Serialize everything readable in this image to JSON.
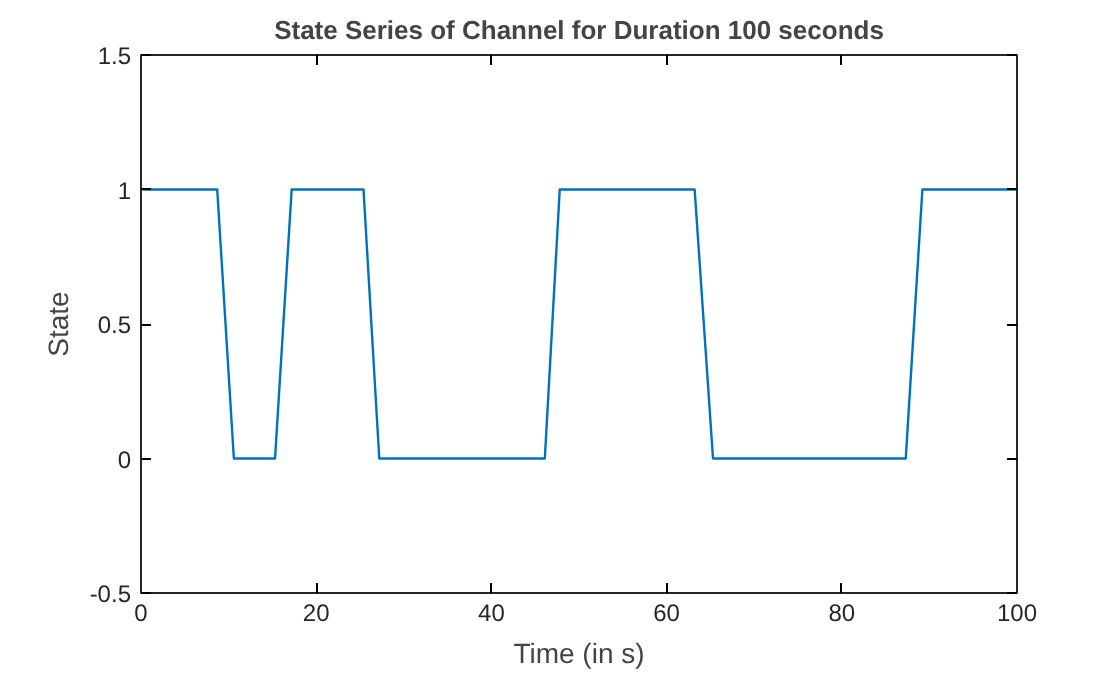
{
  "chart_data": {
    "type": "line",
    "title": "State Series of Channel for Duration 100 seconds",
    "xlabel": "Time (in s)",
    "ylabel": "State",
    "x": [
      0,
      8.7,
      10.6,
      15.3,
      17.2,
      25.4,
      27.2,
      46.1,
      47.8,
      63.2,
      65.3,
      87.3,
      89.2,
      100
    ],
    "series": [
      {
        "color": "#0072bd",
        "values": [
          1,
          1,
          0,
          0,
          1,
          1,
          0,
          0,
          1,
          1,
          0,
          0,
          1,
          1
        ]
      }
    ],
    "xlim": [
      0,
      100
    ],
    "ylim": [
      -0.5,
      1.5
    ],
    "xticks": [
      0,
      20,
      40,
      60,
      80,
      100
    ],
    "yticks": [
      -0.5,
      0,
      0.5,
      1,
      1.5
    ],
    "grid": false
  }
}
